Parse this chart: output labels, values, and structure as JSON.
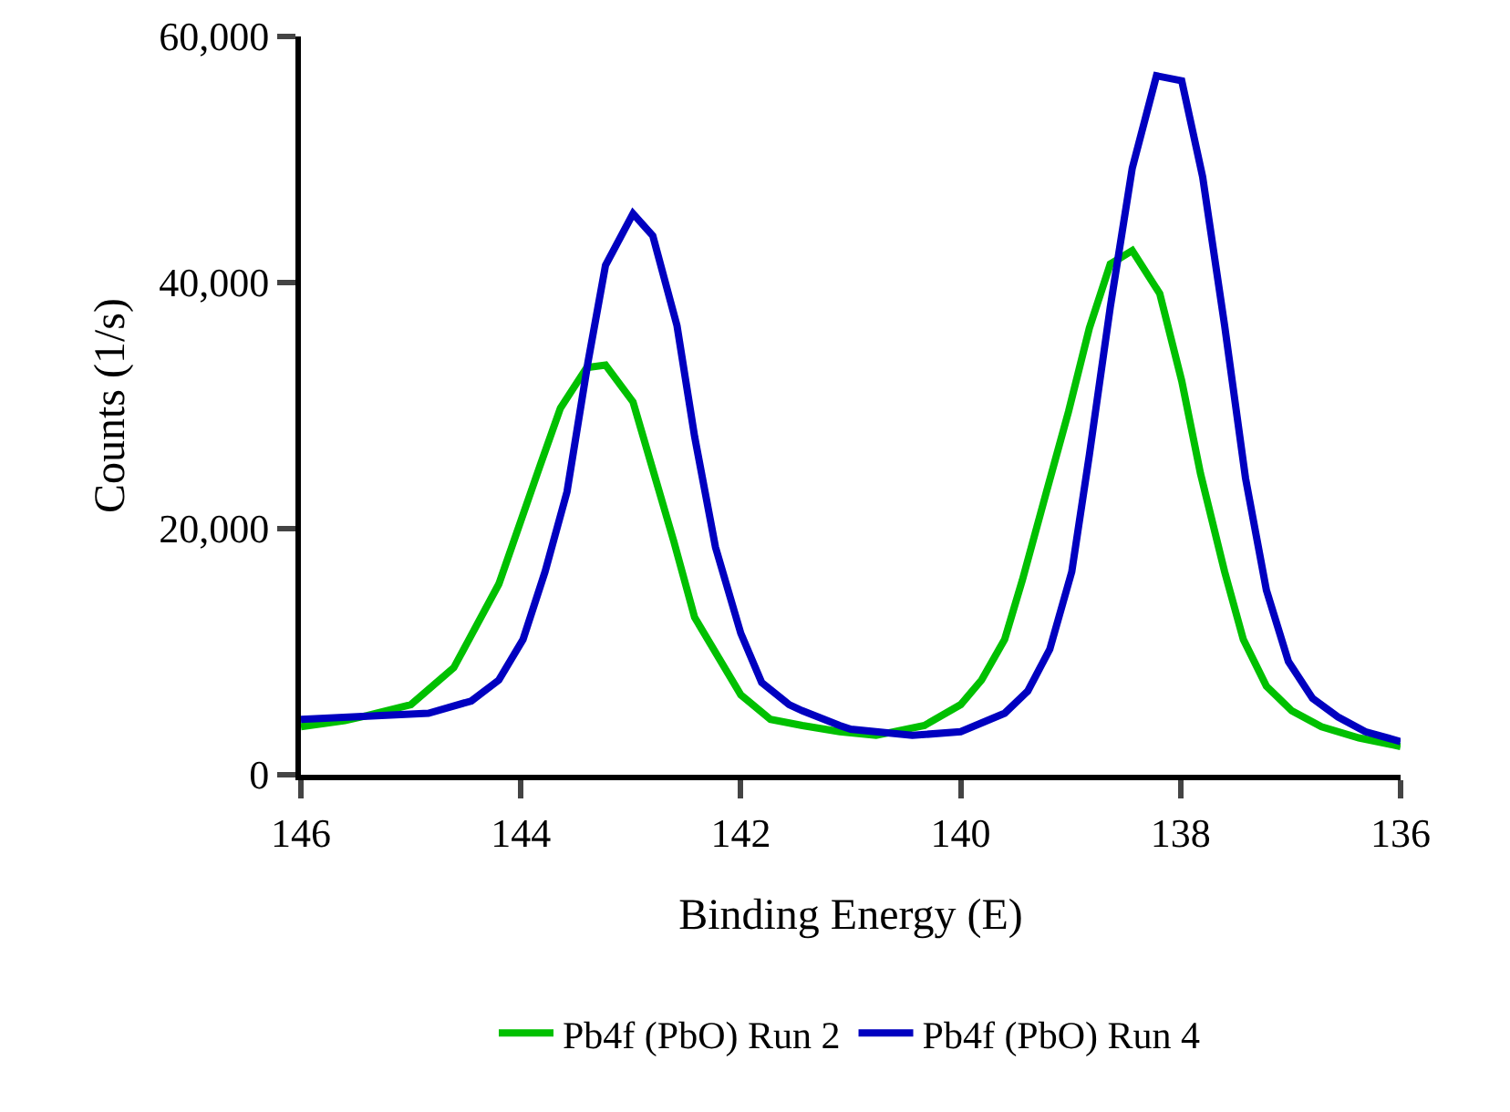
{
  "chart_data": {
    "type": "line",
    "xlabel": "Binding Energy (E)",
    "ylabel": "Counts (1/s)",
    "xlim": [
      146,
      136
    ],
    "xticks": [
      146,
      144,
      142,
      140,
      138,
      136
    ],
    "ylim": [
      0,
      60000
    ],
    "yticks": [
      0,
      {
        "value": 20000,
        "label": "20,000"
      },
      {
        "value": 40000,
        "label": "40,000"
      },
      {
        "value": 60000,
        "label": "60,000"
      }
    ],
    "grid": false,
    "legend": "bottom",
    "marker": "none",
    "line_style": "solid",
    "series": [
      {
        "name": "Pb4f (PbO) Run 2",
        "color": "#00c000",
        "x": [
          146,
          145.6,
          145.4,
          145.0,
          144.61,
          144.2,
          143.83,
          143.64,
          143.4,
          143.23,
          142.98,
          142.61,
          142.42,
          142.0,
          141.73,
          141.44,
          141.1,
          140.77,
          140.33,
          140.0,
          139.81,
          139.6,
          139.44,
          139.22,
          139.02,
          138.83,
          138.64,
          138.44,
          138.19,
          137.99,
          137.82,
          137.6,
          137.43,
          137.22,
          136.99,
          136.72,
          136.38,
          136.0
        ],
        "values": [
          3900,
          4400,
          4800,
          5700,
          8700,
          15500,
          25000,
          29800,
          33100,
          33300,
          30300,
          19000,
          12800,
          6500,
          4500,
          4000,
          3500,
          3200,
          4000,
          5700,
          7700,
          11000,
          15800,
          23000,
          29500,
          36300,
          41500,
          42600,
          39100,
          32000,
          24500,
          16500,
          11000,
          7200,
          5200,
          3900,
          3000,
          2300
        ]
      },
      {
        "name": "Pb4f (PbO) Run 4",
        "color": "#0000c0",
        "x": [
          146,
          144.84,
          144.45,
          144.2,
          143.98,
          143.78,
          143.58,
          143.39,
          143.23,
          142.98,
          142.8,
          142.58,
          142.42,
          142.23,
          142.0,
          141.81,
          141.56,
          141.44,
          141.1,
          141.0,
          140.44,
          140.0,
          139.6,
          139.39,
          139.19,
          138.99,
          138.83,
          138.64,
          138.44,
          138.22,
          137.99,
          137.8,
          137.6,
          137.41,
          137.22,
          137.02,
          136.8,
          136.57,
          136.32,
          136.0
        ],
        "values": [
          4500,
          5000,
          6000,
          7700,
          11000,
          16500,
          23000,
          33500,
          41400,
          45600,
          43800,
          36500,
          27500,
          18500,
          11500,
          7500,
          5700,
          5200,
          4000,
          3700,
          3200,
          3500,
          5000,
          6800,
          10200,
          16500,
          26000,
          38000,
          49300,
          56800,
          56400,
          48600,
          36500,
          24100,
          15000,
          9200,
          6200,
          4700,
          3500,
          2700
        ]
      }
    ]
  }
}
